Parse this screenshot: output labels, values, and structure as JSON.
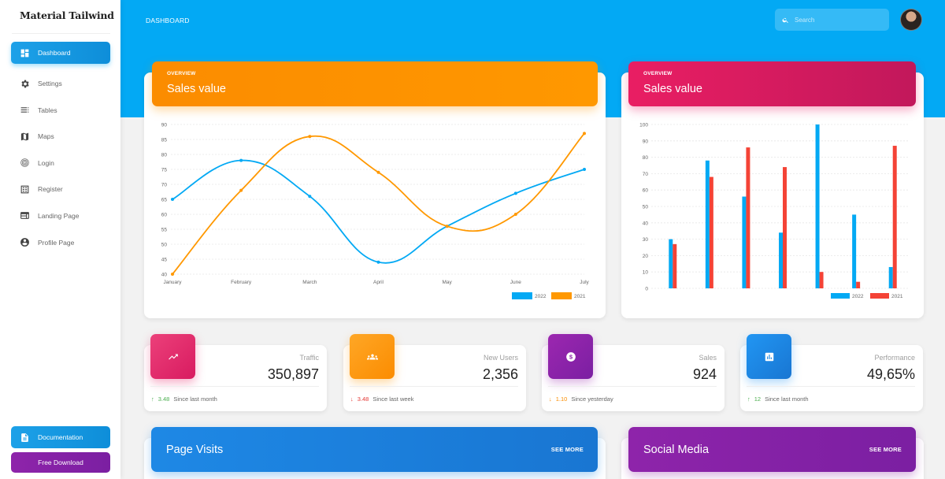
{
  "sidebar": {
    "brand": "Material Tailwind",
    "items": [
      {
        "label": "Dashboard",
        "icon": "dashboard-icon",
        "active": true
      },
      {
        "label": "Settings",
        "icon": "gear-icon"
      },
      {
        "label": "Tables",
        "icon": "table-icon"
      },
      {
        "label": "Maps",
        "icon": "map-icon"
      },
      {
        "label": "Login",
        "icon": "fingerprint-icon"
      },
      {
        "label": "Register",
        "icon": "list-icon"
      },
      {
        "label": "Landing Page",
        "icon": "web-icon"
      },
      {
        "label": "Profile Page",
        "icon": "account-circle-icon"
      }
    ],
    "documentation_label": "Documentation",
    "download_label": "Free Download"
  },
  "header": {
    "title": "DASHBOARD",
    "search_placeholder": "Search"
  },
  "line_card": {
    "eyebrow": "OVERVIEW",
    "title": "Sales value"
  },
  "bar_card": {
    "eyebrow": "OVERVIEW",
    "title": "Sales value"
  },
  "stats": [
    {
      "label": "Traffic",
      "value": "350,897",
      "delta": "3.48",
      "direction": "up",
      "note": "Since last month",
      "color": "#e91e63"
    },
    {
      "label": "New Users",
      "value": "2,356",
      "delta": "3.48",
      "direction": "down",
      "note": "Since last week",
      "color": "#fb8c00"
    },
    {
      "label": "Sales",
      "value": "924",
      "delta": "1.10",
      "direction": "down",
      "note": "Since yesterday",
      "color": "#8e24aa"
    },
    {
      "label": "Performance",
      "value": "49,65%",
      "delta": "12",
      "direction": "up",
      "note": "Since last month",
      "color": "#1e88e5"
    }
  ],
  "page_visits": {
    "title": "Page Visits",
    "action": "SEE MORE"
  },
  "social_media": {
    "title": "Social Media",
    "action": "SEE MORE"
  },
  "colors": {
    "header": "#03a9f4",
    "series_2022": "#03a9f4",
    "series_2021_line": "#ff9800",
    "series_2021_bar": "#f44336"
  },
  "chart_data": [
    {
      "type": "line",
      "title": "Sales value",
      "categories": [
        "January",
        "February",
        "March",
        "April",
        "May",
        "June",
        "July"
      ],
      "series": [
        {
          "name": "2022",
          "values": [
            65,
            78,
            66,
            44,
            56,
            67,
            75
          ],
          "color": "#03a9f4"
        },
        {
          "name": "2021",
          "values": [
            40,
            68,
            86,
            74,
            56,
            60,
            87
          ],
          "color": "#ff9800"
        }
      ],
      "ylim": [
        40,
        90
      ],
      "yticks": [
        40,
        45,
        50,
        55,
        60,
        65,
        70,
        75,
        80,
        85,
        90
      ],
      "grid": true,
      "legend_position": "bottom-right"
    },
    {
      "type": "bar",
      "title": "Sales value",
      "categories": [
        "",
        "",
        "",
        "",
        "",
        "",
        ""
      ],
      "series": [
        {
          "name": "2022",
          "values": [
            30,
            78,
            56,
            34,
            100,
            45,
            13
          ],
          "color": "#03a9f4"
        },
        {
          "name": "2021",
          "values": [
            27,
            68,
            86,
            74,
            10,
            4,
            87
          ],
          "color": "#f44336"
        }
      ],
      "ylim": [
        0,
        100
      ],
      "yticks": [
        0,
        10,
        20,
        30,
        40,
        50,
        60,
        70,
        80,
        90,
        100
      ],
      "grid": true,
      "legend_position": "bottom-right"
    }
  ]
}
